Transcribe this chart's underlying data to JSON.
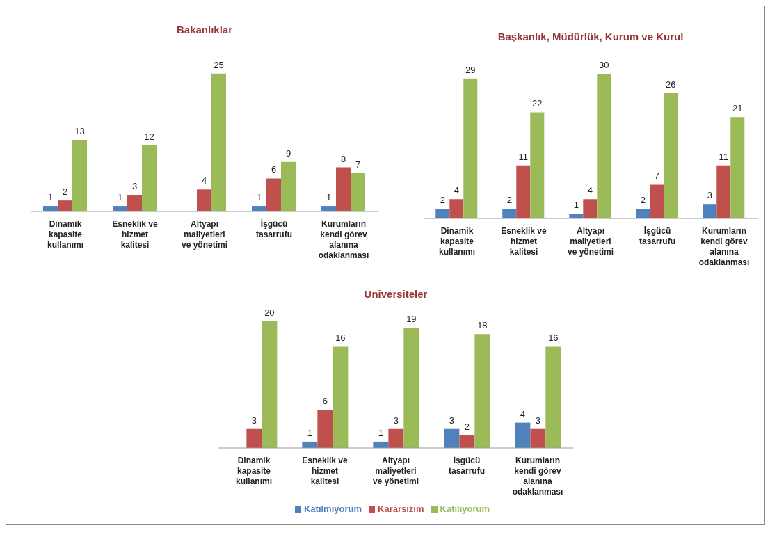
{
  "chart_data": [
    {
      "type": "bar",
      "title": "Bakanlıklar",
      "categories": [
        "Dinamik kapasite kullanımı",
        "Esneklik ve hizmet kalitesi",
        "Altyapı maliyetleri ve yönetimi",
        "İşgücü tasarrufu",
        "Kurumların kendi görev alanına odaklanması"
      ],
      "series": [
        {
          "color": "#4f81bd",
          "values": [
            1,
            1,
            null,
            1,
            1
          ]
        },
        {
          "color": "#c0504d",
          "values": [
            2,
            3,
            4,
            6,
            8
          ]
        },
        {
          "color": "#9bbb59",
          "values": [
            13,
            12,
            25,
            9,
            7
          ]
        }
      ],
      "data_labels": true,
      "grid": false,
      "legend": false
    },
    {
      "type": "bar",
      "title": "Başkanlık, Müdürlük, Kurum ve Kurul",
      "categories": [
        "Dinamik kapasite kullanımı",
        "Esneklik ve hizmet kalitesi",
        "Altyapı maliyetleri ve yönetimi",
        "İşgücü tasarrufu",
        "Kurumların kendi görev alanına odaklanması"
      ],
      "series": [
        {
          "color": "#4f81bd",
          "values": [
            2,
            2,
            1,
            2,
            3
          ]
        },
        {
          "color": "#c0504d",
          "values": [
            4,
            11,
            4,
            7,
            11
          ]
        },
        {
          "color": "#9bbb59",
          "values": [
            29,
            22,
            30,
            26,
            21
          ]
        }
      ],
      "data_labels": true,
      "grid": false,
      "legend": false
    },
    {
      "type": "bar",
      "title": "Üniversiteler",
      "categories": [
        "Dinamik kapasite kullanımı",
        "Esneklik ve hizmet kalitesi",
        "Altyapı maliyetleri ve yönetimi",
        "İşgücü tasarrufu",
        "Kurumların kendi görev alanına odaklanması"
      ],
      "series": [
        {
          "name": "Katılmıyorum",
          "color": "#4f81bd",
          "values": [
            null,
            1,
            1,
            3,
            4
          ]
        },
        {
          "name": "Kararsızım",
          "color": "#c0504d",
          "values": [
            3,
            6,
            3,
            2,
            3
          ]
        },
        {
          "name": "Katılıyorum",
          "color": "#9bbb59",
          "values": [
            20,
            16,
            19,
            18,
            16
          ]
        }
      ],
      "data_labels": true,
      "grid": false,
      "legend": "bottom"
    }
  ]
}
